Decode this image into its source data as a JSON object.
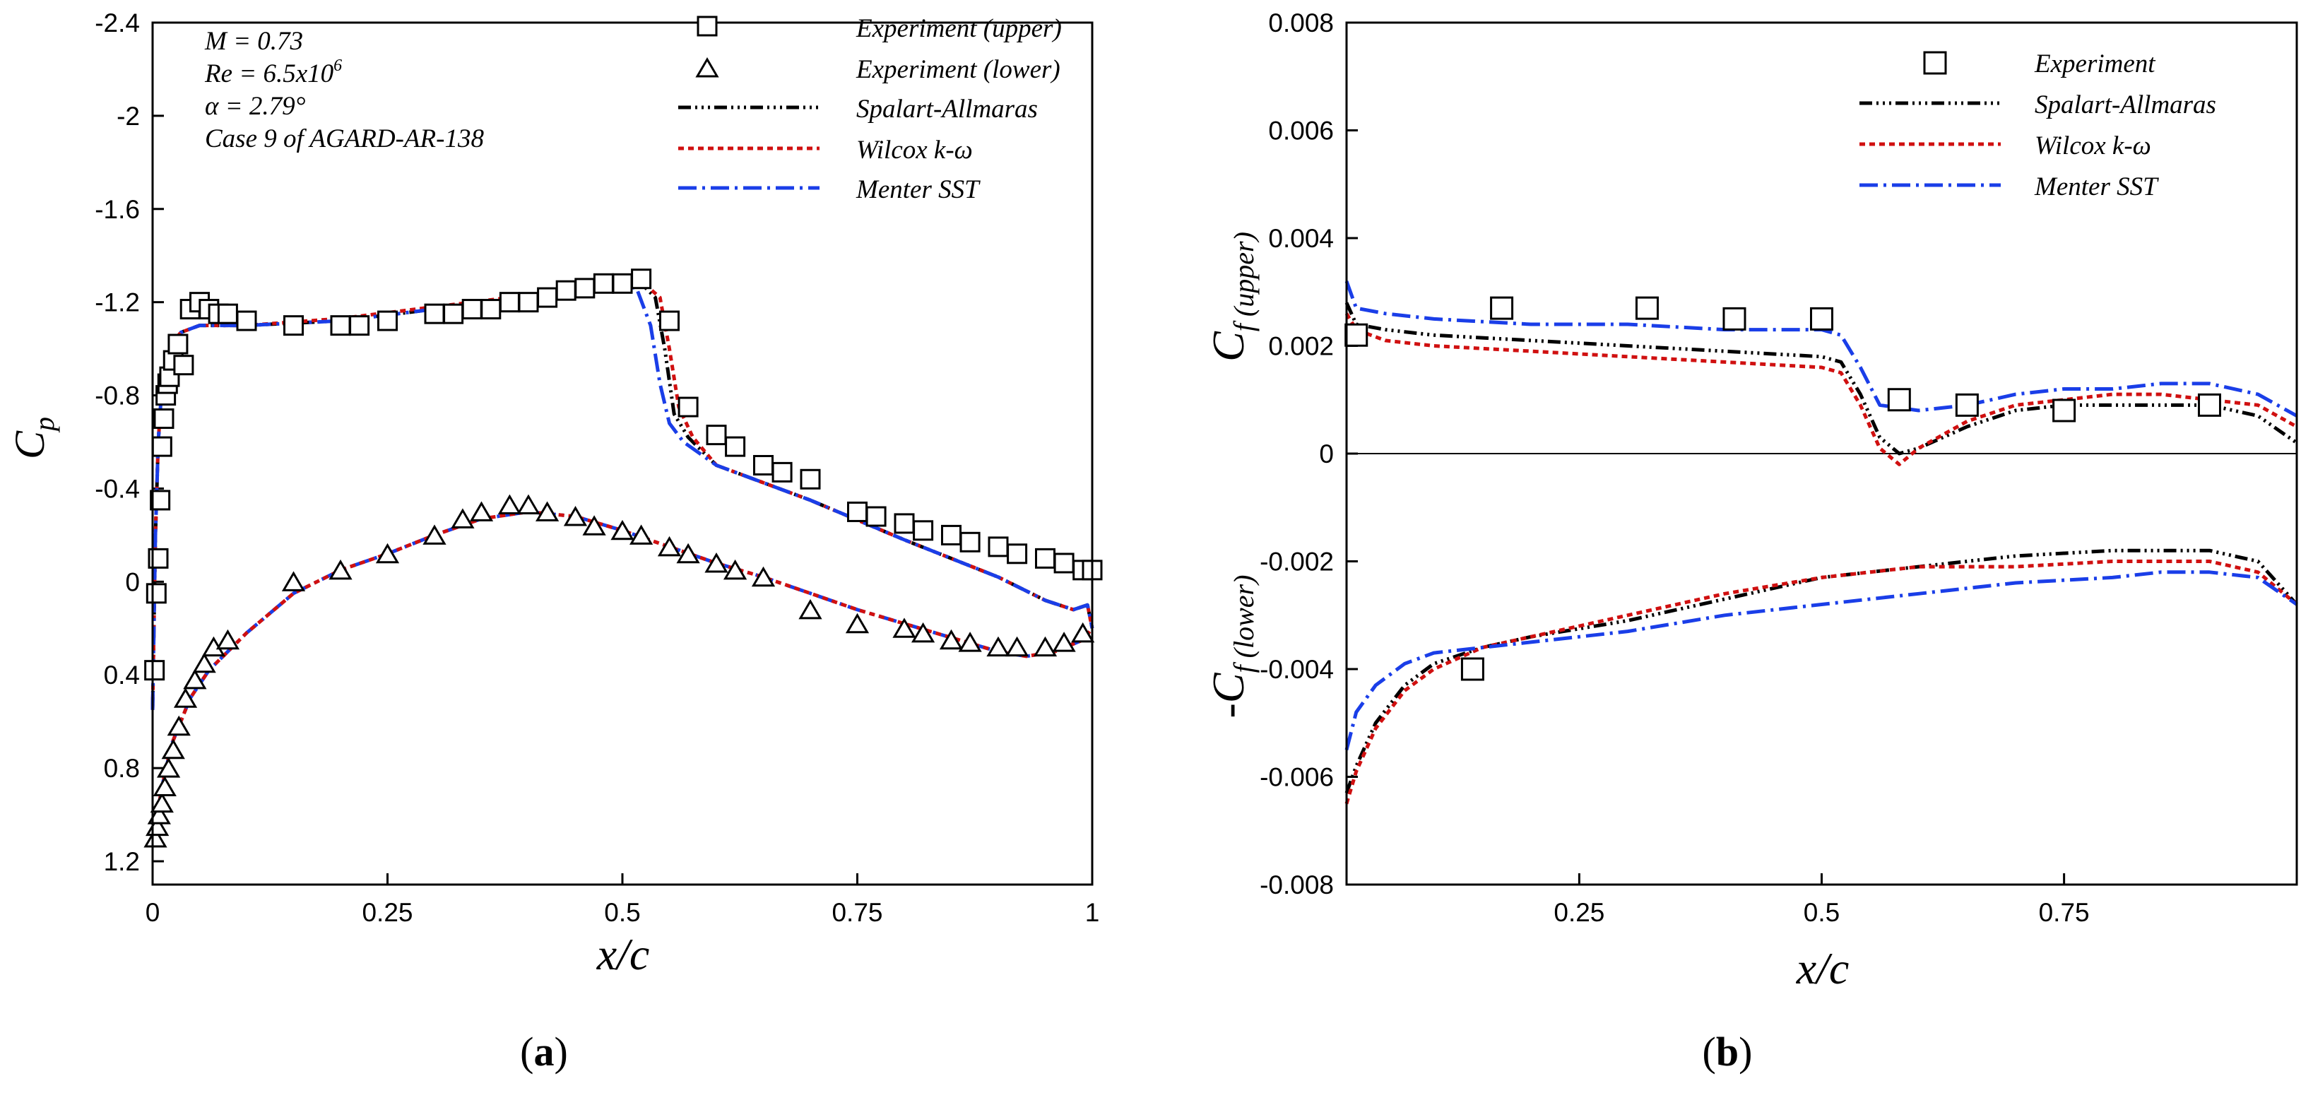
{
  "chart_data": [
    {
      "panel_label": "(a)",
      "panel_letter": "a",
      "type": "line",
      "xlabel": "x/c",
      "ylabel": "Cp",
      "ylabel_main": "C",
      "ylabel_sub": "p",
      "xlim": [
        0,
        1
      ],
      "ylim": [
        1.3,
        -2.4
      ],
      "y_inverted": true,
      "xticks": [
        0,
        0.25,
        0.5,
        0.75,
        1
      ],
      "xtick_labels": [
        "0",
        "0.25",
        "0.5",
        "0.75",
        "1"
      ],
      "yticks": [
        -2.4,
        -2,
        -1.6,
        -1.2,
        -0.8,
        -0.4,
        0,
        0.4,
        0.8,
        1.2
      ],
      "ytick_labels": [
        "-2.4",
        "-2",
        "-1.6",
        "-1.2",
        "-0.8",
        "-0.4",
        "0",
        "0.4",
        "0.8",
        "1.2"
      ],
      "annotations": {
        "mach": "M = 0.73",
        "reynolds_base": "Re = 6.5x10",
        "reynolds_exp": "6",
        "alpha": "α = 2.79°",
        "case": "Case 9 of AGARD-AR-138"
      },
      "legend": [
        {
          "label": "Experiment (upper)",
          "marker": "square"
        },
        {
          "label": "Experiment (lower)",
          "marker": "triangle"
        },
        {
          "label": "Spalart-Allmaras",
          "color": "#000000",
          "dash": "18,6,3,6,3,6,3,6"
        },
        {
          "label": "Wilcox k-ω",
          "color": "#d01010",
          "dash": "8,6"
        },
        {
          "label": "Menter SST",
          "color": "#1a3ee8",
          "dash": "26,8,4,8"
        }
      ],
      "series": [
        {
          "name": "Experiment (upper)",
          "kind": "scatter",
          "marker": "square",
          "x": [
            0.002,
            0.004,
            0.006,
            0.008,
            0.01,
            0.012,
            0.014,
            0.016,
            0.018,
            0.022,
            0.027,
            0.033,
            0.04,
            0.05,
            0.06,
            0.07,
            0.08,
            0.1,
            0.15,
            0.2,
            0.22,
            0.25,
            0.3,
            0.32,
            0.34,
            0.36,
            0.38,
            0.4,
            0.42,
            0.44,
            0.46,
            0.48,
            0.5,
            0.52,
            0.55,
            0.57,
            0.6,
            0.62,
            0.65,
            0.67,
            0.7,
            0.75,
            0.77,
            0.8,
            0.82,
            0.85,
            0.87,
            0.9,
            0.92,
            0.95,
            0.97,
            0.99,
            1.0
          ],
          "y": [
            0.38,
            0.05,
            -0.1,
            -0.35,
            -0.58,
            -0.7,
            -0.8,
            -0.85,
            -0.88,
            -0.95,
            -1.02,
            -0.93,
            -1.17,
            -1.2,
            -1.17,
            -1.15,
            -1.15,
            -1.12,
            -1.1,
            -1.1,
            -1.1,
            -1.12,
            -1.15,
            -1.15,
            -1.17,
            -1.17,
            -1.2,
            -1.2,
            -1.22,
            -1.25,
            -1.26,
            -1.28,
            -1.28,
            -1.3,
            -1.12,
            -0.75,
            -0.63,
            -0.58,
            -0.5,
            -0.47,
            -0.44,
            -0.3,
            -0.28,
            -0.25,
            -0.22,
            -0.2,
            -0.17,
            -0.15,
            -0.12,
            -0.1,
            -0.08,
            -0.05,
            -0.05
          ]
        },
        {
          "name": "Experiment (lower)",
          "kind": "scatter",
          "marker": "triangle",
          "x": [
            0.003,
            0.005,
            0.007,
            0.01,
            0.013,
            0.017,
            0.022,
            0.028,
            0.035,
            0.045,
            0.055,
            0.065,
            0.08,
            0.15,
            0.2,
            0.25,
            0.3,
            0.33,
            0.35,
            0.38,
            0.4,
            0.42,
            0.45,
            0.47,
            0.5,
            0.52,
            0.55,
            0.57,
            0.6,
            0.62,
            0.65,
            0.7,
            0.75,
            0.8,
            0.82,
            0.85,
            0.87,
            0.9,
            0.92,
            0.95,
            0.97,
            0.99
          ],
          "y": [
            1.1,
            1.05,
            1.0,
            0.95,
            0.88,
            0.8,
            0.72,
            0.62,
            0.5,
            0.42,
            0.35,
            0.28,
            0.25,
            0.0,
            -0.05,
            -0.12,
            -0.2,
            -0.27,
            -0.3,
            -0.33,
            -0.33,
            -0.3,
            -0.28,
            -0.24,
            -0.22,
            -0.2,
            -0.15,
            -0.12,
            -0.08,
            -0.05,
            -0.02,
            0.12,
            0.18,
            0.2,
            0.22,
            0.25,
            0.26,
            0.28,
            0.28,
            0.28,
            0.26,
            0.22
          ]
        },
        {
          "name": "Spalart-Allmaras",
          "kind": "line",
          "color": "#000000",
          "dash": "18,6,3,6,3,6,3,6",
          "x": [
            0.0,
            0.003,
            0.006,
            0.01,
            0.015,
            0.02,
            0.03,
            0.05,
            0.1,
            0.2,
            0.3,
            0.4,
            0.45,
            0.5,
            0.52,
            0.535,
            0.545,
            0.555,
            0.57,
            0.6,
            0.7,
            0.8,
            0.9,
            0.95,
            0.98,
            0.995,
            1.0
          ],
          "y": [
            0.55,
            -0.2,
            -0.6,
            -0.85,
            -0.95,
            -1.02,
            -1.07,
            -1.1,
            -1.1,
            -1.12,
            -1.17,
            -1.22,
            -1.25,
            -1.27,
            -1.28,
            -1.22,
            -1.0,
            -0.72,
            -0.62,
            -0.5,
            -0.35,
            -0.18,
            -0.02,
            0.08,
            0.12,
            0.1,
            0.2
          ]
        },
        {
          "name": "Wilcox k-ω",
          "kind": "line",
          "color": "#d01010",
          "dash": "8,6",
          "x": [
            0.0,
            0.003,
            0.006,
            0.01,
            0.015,
            0.02,
            0.03,
            0.05,
            0.1,
            0.2,
            0.3,
            0.4,
            0.45,
            0.5,
            0.52,
            0.54,
            0.55,
            0.56,
            0.575,
            0.6,
            0.7,
            0.8,
            0.9,
            0.95,
            0.98,
            0.995,
            1.0
          ],
          "y": [
            0.55,
            -0.2,
            -0.6,
            -0.85,
            -0.95,
            -1.02,
            -1.07,
            -1.1,
            -1.1,
            -1.13,
            -1.18,
            -1.23,
            -1.26,
            -1.28,
            -1.29,
            -1.22,
            -1.0,
            -0.75,
            -0.62,
            -0.5,
            -0.35,
            -0.18,
            -0.02,
            0.08,
            0.12,
            0.1,
            0.2
          ]
        },
        {
          "name": "Menter SST",
          "kind": "line",
          "color": "#1a3ee8",
          "dash": "26,8,4,8",
          "x": [
            0.0,
            0.003,
            0.006,
            0.01,
            0.015,
            0.02,
            0.03,
            0.05,
            0.1,
            0.2,
            0.3,
            0.4,
            0.45,
            0.5,
            0.515,
            0.53,
            0.54,
            0.55,
            0.565,
            0.6,
            0.7,
            0.8,
            0.9,
            0.95,
            0.98,
            0.995,
            1.0
          ],
          "y": [
            0.55,
            -0.2,
            -0.6,
            -0.85,
            -0.95,
            -1.02,
            -1.07,
            -1.1,
            -1.1,
            -1.12,
            -1.17,
            -1.22,
            -1.25,
            -1.27,
            -1.26,
            -1.1,
            -0.85,
            -0.68,
            -0.6,
            -0.5,
            -0.35,
            -0.18,
            -0.02,
            0.08,
            0.12,
            0.1,
            0.2
          ]
        },
        {
          "name": "Lower surface (all models)",
          "kind": "line",
          "color": "#1a3ee8",
          "dash": "26,8,4,8",
          "legend": false,
          "x": [
            0.0,
            0.005,
            0.01,
            0.02,
            0.04,
            0.06,
            0.1,
            0.15,
            0.2,
            0.25,
            0.3,
            0.35,
            0.4,
            0.45,
            0.5,
            0.55,
            0.6,
            0.65,
            0.7,
            0.75,
            0.8,
            0.85,
            0.9,
            0.93,
            0.96,
            0.99,
            1.0
          ],
          "y": [
            1.1,
            1.0,
            0.88,
            0.7,
            0.5,
            0.38,
            0.22,
            0.05,
            -0.05,
            -0.12,
            -0.2,
            -0.27,
            -0.3,
            -0.28,
            -0.22,
            -0.15,
            -0.08,
            -0.02,
            0.05,
            0.12,
            0.18,
            0.24,
            0.3,
            0.32,
            0.3,
            0.25,
            0.2
          ]
        },
        {
          "name": "Lower surface (Wilcox overlay)",
          "kind": "line",
          "color": "#d01010",
          "dash": "8,6",
          "legend": false,
          "x": [
            0.0,
            0.005,
            0.01,
            0.02,
            0.04,
            0.06,
            0.1,
            0.15,
            0.2,
            0.25,
            0.3,
            0.35,
            0.4,
            0.45,
            0.5,
            0.55,
            0.6,
            0.65,
            0.7,
            0.75,
            0.8,
            0.85,
            0.9,
            0.93,
            0.96,
            0.99,
            1.0
          ],
          "y": [
            1.1,
            1.0,
            0.88,
            0.7,
            0.5,
            0.38,
            0.22,
            0.05,
            -0.05,
            -0.12,
            -0.2,
            -0.27,
            -0.3,
            -0.28,
            -0.22,
            -0.15,
            -0.08,
            -0.02,
            0.05,
            0.12,
            0.18,
            0.24,
            0.3,
            0.32,
            0.3,
            0.25,
            0.2
          ]
        }
      ]
    },
    {
      "panel_label": "(b)",
      "panel_letter": "b",
      "type": "line",
      "xlabel": "x/c",
      "ylabel_upper": "Cf (upper)",
      "ylabel_upper_main": "C",
      "ylabel_upper_sub": "f  (upper)",
      "ylabel_lower": "-Cf (lower)",
      "ylabel_lower_main": "-C",
      "ylabel_lower_sub": "f  (lower)",
      "xlim": [
        0.01,
        0.99
      ],
      "ylim": [
        -0.008,
        0.008
      ],
      "xticks": [
        0.25,
        0.5,
        0.75
      ],
      "xtick_labels": [
        "0.25",
        "0.5",
        "0.75"
      ],
      "yticks": [
        0.008,
        0.006,
        0.004,
        0.002,
        0,
        -0.002,
        -0.004,
        -0.006,
        -0.008
      ],
      "ytick_labels": [
        "0.008",
        "0.006",
        "0.004",
        "0.002",
        "0",
        "-0.002",
        "-0.004",
        "-0.006",
        "-0.008"
      ],
      "zero_line": true,
      "legend": [
        {
          "label": "Experiment",
          "marker": "square"
        },
        {
          "label": "Spalart-Allmaras",
          "color": "#000000",
          "dash": "18,6,3,6,3,6,3,6"
        },
        {
          "label": "Wilcox k-ω",
          "color": "#d01010",
          "dash": "8,6"
        },
        {
          "label": "Menter SST",
          "color": "#1a3ee8",
          "dash": "26,8,4,8"
        }
      ],
      "series": [
        {
          "name": "Experiment",
          "kind": "scatter",
          "marker": "square",
          "x": [
            0.02,
            0.17,
            0.32,
            0.41,
            0.5,
            0.58,
            0.65,
            0.75,
            0.9
          ],
          "y": [
            0.0022,
            0.0027,
            0.0027,
            0.0025,
            0.0025,
            0.001,
            0.0009,
            0.0008,
            0.0009
          ]
        },
        {
          "name": "Experiment (lower)",
          "kind": "scatter",
          "marker": "square",
          "legend": false,
          "x": [
            0.14
          ],
          "y": [
            -0.004
          ]
        },
        {
          "name": "Spalart-Allmaras",
          "kind": "line",
          "color": "#000000",
          "dash": "18,6,3,6,3,6,3,6",
          "x": [
            0.01,
            0.02,
            0.05,
            0.1,
            0.2,
            0.3,
            0.4,
            0.5,
            0.52,
            0.54,
            0.56,
            0.58,
            0.6,
            0.65,
            0.7,
            0.75,
            0.8,
            0.85,
            0.9,
            0.95,
            0.99
          ],
          "y": [
            0.0028,
            0.0024,
            0.0023,
            0.0022,
            0.0021,
            0.002,
            0.0019,
            0.0018,
            0.0017,
            0.0011,
            0.0003,
            0.0,
            0.0001,
            0.0005,
            0.0008,
            0.0009,
            0.0009,
            0.0009,
            0.0009,
            0.0007,
            0.0002
          ]
        },
        {
          "name": "Wilcox k-ω",
          "kind": "line",
          "color": "#d01010",
          "dash": "8,6",
          "x": [
            0.01,
            0.02,
            0.05,
            0.1,
            0.2,
            0.3,
            0.4,
            0.5,
            0.52,
            0.54,
            0.56,
            0.58,
            0.6,
            0.65,
            0.7,
            0.75,
            0.8,
            0.85,
            0.9,
            0.95,
            0.99
          ],
          "y": [
            0.0026,
            0.0023,
            0.0021,
            0.002,
            0.0019,
            0.0018,
            0.0017,
            0.0016,
            0.0015,
            0.0009,
            0.0001,
            -0.0002,
            0.0001,
            0.0006,
            0.0009,
            0.001,
            0.0011,
            0.0011,
            0.001,
            0.0009,
            0.0005
          ]
        },
        {
          "name": "Menter SST",
          "kind": "line",
          "color": "#1a3ee8",
          "dash": "26,8,4,8",
          "x": [
            0.01,
            0.02,
            0.05,
            0.1,
            0.2,
            0.3,
            0.4,
            0.5,
            0.52,
            0.54,
            0.56,
            0.6,
            0.65,
            0.7,
            0.75,
            0.8,
            0.85,
            0.9,
            0.95,
            0.99
          ],
          "y": [
            0.0032,
            0.0027,
            0.0026,
            0.0025,
            0.0024,
            0.0024,
            0.0023,
            0.0023,
            0.0022,
            0.0016,
            0.0009,
            0.0008,
            0.0009,
            0.0011,
            0.0012,
            0.0012,
            0.0013,
            0.0013,
            0.0011,
            0.0007
          ]
        },
        {
          "name": "Spalart-Allmaras (lower)",
          "kind": "line",
          "color": "#000000",
          "dash": "18,6,3,6,3,6,3,6",
          "legend": false,
          "x": [
            0.01,
            0.02,
            0.04,
            0.07,
            0.1,
            0.15,
            0.2,
            0.3,
            0.4,
            0.5,
            0.6,
            0.7,
            0.8,
            0.85,
            0.9,
            0.95,
            0.99
          ],
          "y": [
            -0.0063,
            -0.0058,
            -0.005,
            -0.0043,
            -0.0039,
            -0.0036,
            -0.0034,
            -0.0031,
            -0.0027,
            -0.0023,
            -0.0021,
            -0.0019,
            -0.0018,
            -0.0018,
            -0.0018,
            -0.002,
            -0.0028
          ]
        },
        {
          "name": "Wilcox k-ω (lower)",
          "kind": "line",
          "color": "#d01010",
          "dash": "8,6",
          "legend": false,
          "x": [
            0.01,
            0.02,
            0.04,
            0.07,
            0.1,
            0.15,
            0.2,
            0.3,
            0.4,
            0.5,
            0.6,
            0.7,
            0.8,
            0.85,
            0.9,
            0.95,
            0.99
          ],
          "y": [
            -0.0065,
            -0.0059,
            -0.0051,
            -0.0044,
            -0.004,
            -0.0036,
            -0.0034,
            -0.003,
            -0.0026,
            -0.0023,
            -0.0021,
            -0.0021,
            -0.002,
            -0.002,
            -0.002,
            -0.0022,
            -0.0028
          ]
        },
        {
          "name": "Menter SST (lower)",
          "kind": "line",
          "color": "#1a3ee8",
          "dash": "26,8,4,8",
          "legend": false,
          "x": [
            0.01,
            0.02,
            0.04,
            0.07,
            0.1,
            0.15,
            0.2,
            0.3,
            0.4,
            0.5,
            0.6,
            0.7,
            0.8,
            0.85,
            0.9,
            0.95,
            0.99
          ],
          "y": [
            -0.0055,
            -0.0048,
            -0.0043,
            -0.0039,
            -0.0037,
            -0.0036,
            -0.0035,
            -0.0033,
            -0.003,
            -0.0028,
            -0.0026,
            -0.0024,
            -0.0023,
            -0.0022,
            -0.0022,
            -0.0023,
            -0.0028
          ]
        }
      ]
    }
  ]
}
